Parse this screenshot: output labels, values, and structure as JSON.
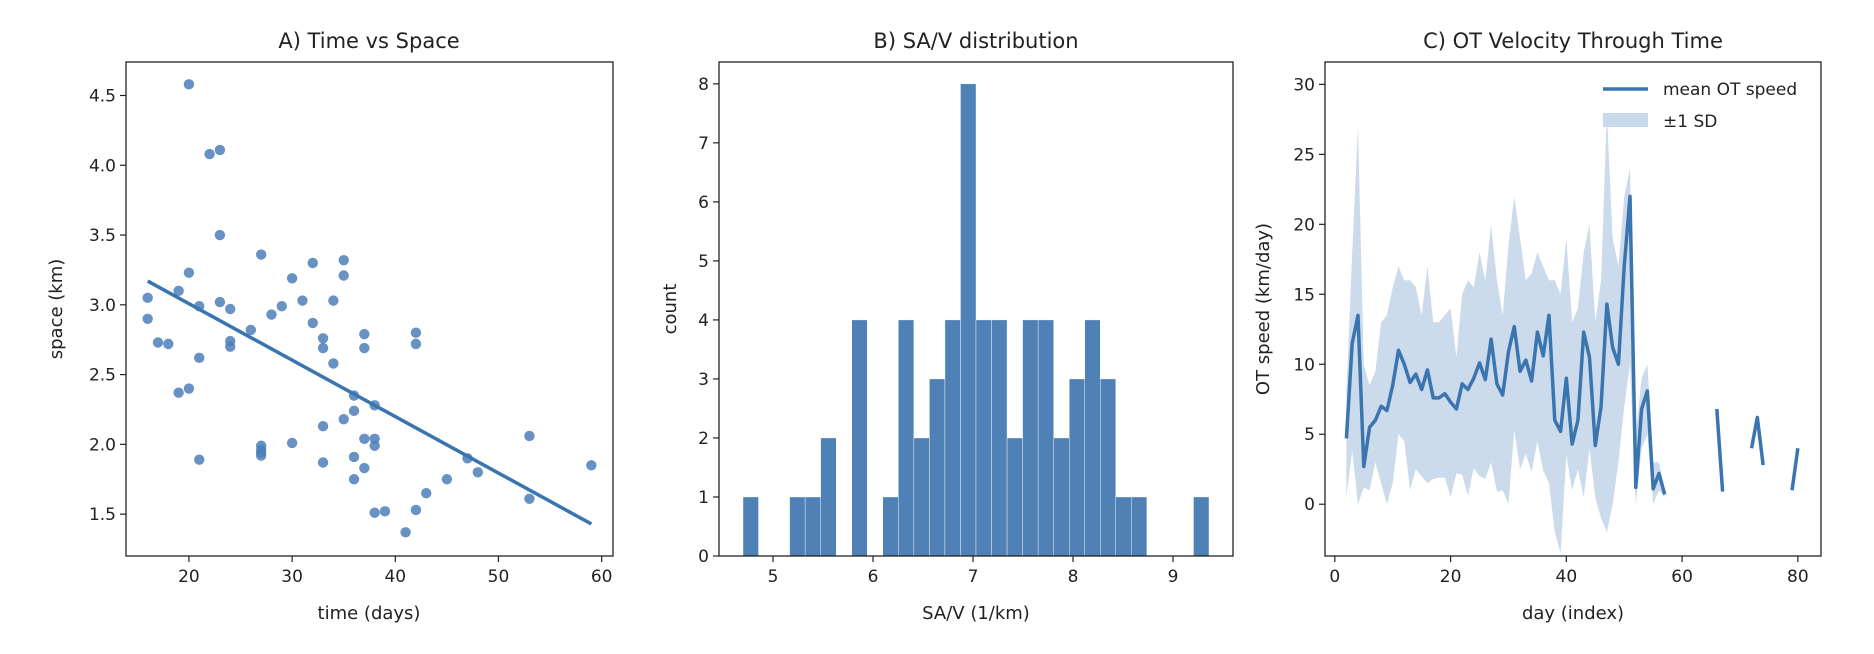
{
  "chart_data": [
    {
      "type": "scatter",
      "title": "A) Time vs Space",
      "xlabel": "time (days)",
      "ylabel": "space (km)",
      "xlim": [
        13.9,
        61.1
      ],
      "ylim": [
        1.2,
        4.74
      ],
      "xticks": [
        "20",
        "30",
        "40",
        "50",
        "60"
      ],
      "yticks": [
        "1.5",
        "2.0",
        "2.5",
        "3.0",
        "3.5",
        "4.0",
        "4.5"
      ],
      "color": "#4c7fb8",
      "points": [
        [
          16,
          3.05
        ],
        [
          16,
          2.9
        ],
        [
          17,
          2.73
        ],
        [
          18,
          2.72
        ],
        [
          19,
          3.1
        ],
        [
          19,
          2.37
        ],
        [
          20,
          4.58
        ],
        [
          20,
          3.23
        ],
        [
          20,
          2.4
        ],
        [
          21,
          2.99
        ],
        [
          21,
          2.62
        ],
        [
          21,
          1.89
        ],
        [
          22,
          4.08
        ],
        [
          23,
          4.11
        ],
        [
          23,
          3.5
        ],
        [
          23,
          3.02
        ],
        [
          24,
          2.97
        ],
        [
          24,
          2.74
        ],
        [
          24,
          2.7
        ],
        [
          26,
          2.82
        ],
        [
          27,
          3.36
        ],
        [
          27,
          1.99
        ],
        [
          27,
          1.96
        ],
        [
          27,
          1.94
        ],
        [
          27,
          1.92
        ],
        [
          28,
          2.93
        ],
        [
          29,
          2.99
        ],
        [
          30,
          3.19
        ],
        [
          30,
          2.01
        ],
        [
          31,
          3.03
        ],
        [
          32,
          3.3
        ],
        [
          32,
          2.87
        ],
        [
          33,
          2.76
        ],
        [
          33,
          2.69
        ],
        [
          33,
          2.13
        ],
        [
          33,
          1.87
        ],
        [
          34,
          3.03
        ],
        [
          34,
          2.58
        ],
        [
          35,
          3.32
        ],
        [
          35,
          3.21
        ],
        [
          35,
          2.18
        ],
        [
          36,
          2.35
        ],
        [
          36,
          2.24
        ],
        [
          36,
          1.91
        ],
        [
          36,
          1.75
        ],
        [
          37,
          2.79
        ],
        [
          37,
          2.69
        ],
        [
          37,
          2.04
        ],
        [
          37,
          1.83
        ],
        [
          38,
          2.28
        ],
        [
          38,
          2.04
        ],
        [
          38,
          1.99
        ],
        [
          38,
          1.51
        ],
        [
          39,
          1.52
        ],
        [
          41,
          1.37
        ],
        [
          42,
          2.8
        ],
        [
          42,
          2.72
        ],
        [
          42,
          1.53
        ],
        [
          43,
          1.65
        ],
        [
          45,
          1.75
        ],
        [
          47,
          1.9
        ],
        [
          48,
          1.8
        ],
        [
          53,
          2.06
        ],
        [
          53,
          1.61
        ],
        [
          59,
          1.85
        ]
      ],
      "fit_line": [
        [
          16,
          3.17
        ],
        [
          59,
          1.43
        ]
      ]
    },
    {
      "type": "bar",
      "title": "B) SA/V distribution",
      "xlabel": "SA/V (1/km)",
      "ylabel": "count",
      "xlim": [
        4.46,
        9.6
      ],
      "ylim": [
        0,
        8.37
      ],
      "xticks": [
        "5",
        "6",
        "7",
        "8",
        "9"
      ],
      "yticks": [
        "0",
        "1",
        "2",
        "3",
        "4",
        "5",
        "6",
        "7",
        "8"
      ],
      "color": "#4f81b6",
      "bin_start": 4.7,
      "bin_end": 9.36,
      "counts": [
        1,
        0,
        0,
        1,
        1,
        2,
        0,
        4,
        0,
        1,
        4,
        2,
        3,
        4,
        8,
        4,
        4,
        2,
        4,
        4,
        2,
        3,
        4,
        3,
        1,
        1,
        0,
        0,
        0,
        1
      ]
    },
    {
      "type": "line",
      "title": "C) OT Velocity Through Time",
      "xlabel": "day (index)",
      "ylabel": "OT speed (km/day)",
      "xlim": [
        -1.7,
        84
      ],
      "ylim": [
        -3.7,
        31.6
      ],
      "xticks": [
        "0",
        "20",
        "40",
        "60",
        "80"
      ],
      "yticks": [
        "0",
        "5",
        "10",
        "15",
        "20",
        "25",
        "30"
      ],
      "legend_position": "top-right",
      "series": [
        {
          "name": "mean OT speed",
          "color": "#3a75b0",
          "x": [
            2,
            3,
            4,
            5,
            6,
            7,
            8,
            9,
            10,
            11,
            12,
            13,
            14,
            15,
            16,
            17,
            18,
            19,
            20,
            21,
            22,
            23,
            24,
            25,
            26,
            27,
            28,
            29,
            30,
            31,
            32,
            33,
            34,
            35,
            36,
            37,
            38,
            39,
            40,
            41,
            42,
            43,
            44,
            45,
            46,
            47,
            48,
            49,
            50,
            51,
            52,
            53,
            54,
            55,
            56,
            57,
            58,
            66,
            67,
            68,
            72,
            73,
            74,
            75,
            79,
            80
          ],
          "y": [
            4.7,
            11.5,
            13.5,
            2.7,
            5.5,
            6,
            7,
            6.7,
            8.5,
            11,
            10,
            8.7,
            9.3,
            8.2,
            9.6,
            7.6,
            7.6,
            7.9,
            7.3,
            6.8,
            8.6,
            8.2,
            9,
            10.1,
            8.9,
            11.8,
            8.6,
            7.8,
            10.9,
            12.7,
            9.5,
            10.3,
            8.8,
            12.3,
            10.6,
            13.5,
            6,
            5.2,
            9,
            4.3,
            6,
            12.3,
            10.5,
            4.2,
            7,
            14.3,
            11.2,
            10,
            17,
            22,
            1.2,
            6.8,
            8.1,
            1.1,
            2.2,
            0.7,
            null,
            6.8,
            0.9,
            null,
            4,
            6.2,
            2.8,
            null,
            1,
            4
          ]
        },
        {
          "name": "±1 SD",
          "color": "#c9d9ea",
          "x": [
            2,
            3,
            4,
            5,
            6,
            7,
            8,
            9,
            10,
            11,
            12,
            13,
            14,
            15,
            16,
            17,
            18,
            19,
            20,
            21,
            22,
            23,
            24,
            25,
            26,
            27,
            28,
            29,
            30,
            31,
            32,
            33,
            34,
            35,
            36,
            37,
            38,
            39,
            40,
            41,
            42,
            43,
            44,
            45,
            46,
            47,
            48,
            49,
            50,
            51,
            52,
            53,
            54,
            55,
            56,
            57
          ],
          "upper": [
            8,
            18,
            27,
            10,
            8.5,
            9.5,
            13,
            13.5,
            15.5,
            17,
            16,
            16,
            15.5,
            13.5,
            17,
            13,
            13,
            13.5,
            14,
            10.5,
            15,
            16,
            15.5,
            18,
            16,
            20,
            16,
            13.5,
            18.5,
            22,
            19,
            16,
            16.5,
            18,
            17,
            16,
            16,
            15,
            19,
            13,
            14,
            18,
            20,
            13,
            16,
            28,
            19,
            17,
            22,
            24,
            5,
            9,
            10,
            3,
            3,
            1
          ],
          "lower": [
            0.5,
            3.8,
            0,
            1.2,
            1,
            3,
            1.5,
            0,
            1.5,
            5,
            4.5,
            1,
            2.5,
            2,
            1.5,
            1.8,
            1.9,
            1.9,
            0.5,
            2.2,
            2.1,
            0.6,
            2.6,
            2,
            1.8,
            3,
            0.9,
            1,
            0,
            5.3,
            2.5,
            3.6,
            2.3,
            4.5,
            2.4,
            1.5,
            -2,
            -3.5,
            3.5,
            1,
            2.5,
            0.5,
            4,
            0.5,
            -1,
            -2,
            0,
            3,
            7,
            10,
            0,
            4,
            5,
            0,
            1,
            0.5
          ]
        }
      ]
    }
  ]
}
